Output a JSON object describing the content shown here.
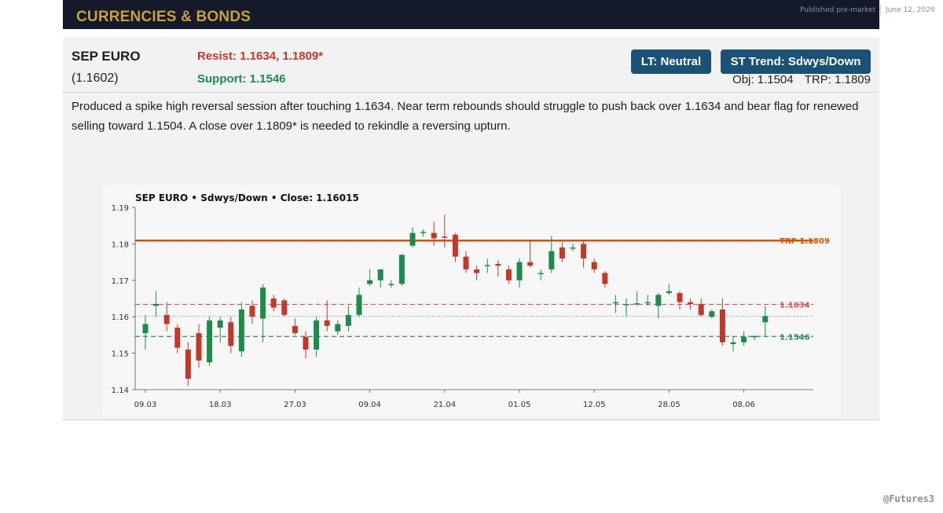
{
  "header": {
    "section_title": "CURRENCIES & BONDS",
    "published_label": "Published pre-market",
    "date": "June 12, 2026"
  },
  "card": {
    "instrument": "SEP EURO",
    "last_price": "(1.1602)",
    "resist": "Resist: 1.1634, 1.1809*",
    "support": "Support: 1.1546",
    "lt_badge": "LT: Neutral",
    "st_badge": "ST Trend: Sdwys/Down",
    "objective": "Obj: 1.1504",
    "trp": "TRP: 1.1809",
    "commentary": "Produced a spike high reversal session after touching 1.1634. Near term rebounds should struggle to push back over 1.1634 and bear flag for renewed selling toward 1.1504. A close over 1.1809* is needed to rekindle a reversing upturn."
  },
  "credit": "@Futures3",
  "colors": {
    "up": "#1e8a4c",
    "down": "#c0392b",
    "trp_line": "#d35400",
    "resist_line": "#d9534f",
    "support_line": "#2e8b57",
    "badge": "#1b5177",
    "title_gold": "#c9a13a"
  },
  "chart_data": {
    "type": "candlestick",
    "title": "SEP EURO  •  Sdwys/Down  •  Close: 1.16015",
    "ylim": [
      1.14,
      1.19
    ],
    "yticks": [
      "1.14",
      "1.15",
      "1.16",
      "1.17",
      "1.18",
      "1.19"
    ],
    "xticks": [
      {
        "index": 0,
        "label": "09.03"
      },
      {
        "index": 7,
        "label": "18.03"
      },
      {
        "index": 14,
        "label": "27.03"
      },
      {
        "index": 21,
        "label": "09.04"
      },
      {
        "index": 28,
        "label": "21.04"
      },
      {
        "index": 35,
        "label": "01.05"
      },
      {
        "index": 42,
        "label": "12.05"
      },
      {
        "index": 49,
        "label": "28.05"
      },
      {
        "index": 56,
        "label": "08.06"
      }
    ],
    "levels": [
      {
        "label": "TRP 1.1809",
        "value": 1.1809,
        "style": "solid",
        "color": "#d35400"
      },
      {
        "label": "1.1634",
        "value": 1.1634,
        "style": "dashed",
        "color": "#d9534f"
      },
      {
        "label": "1.1546",
        "value": 1.1546,
        "style": "dashed",
        "color": "#2e8b57"
      },
      {
        "label": "",
        "value": 1.16015,
        "style": "dotted",
        "color": "#777777"
      }
    ],
    "candles": [
      {
        "o": 1.1555,
        "h": 1.1605,
        "l": 1.151,
        "c": 1.158
      },
      {
        "o": 1.163,
        "h": 1.167,
        "l": 1.16,
        "c": 1.1635
      },
      {
        "o": 1.1605,
        "h": 1.164,
        "l": 1.156,
        "c": 1.158
      },
      {
        "o": 1.157,
        "h": 1.158,
        "l": 1.15,
        "c": 1.1515
      },
      {
        "o": 1.151,
        "h": 1.153,
        "l": 1.141,
        "c": 1.143
      },
      {
        "o": 1.1555,
        "h": 1.158,
        "l": 1.146,
        "c": 1.148
      },
      {
        "o": 1.1475,
        "h": 1.16,
        "l": 1.1465,
        "c": 1.159
      },
      {
        "o": 1.157,
        "h": 1.16,
        "l": 1.153,
        "c": 1.159
      },
      {
        "o": 1.1585,
        "h": 1.16,
        "l": 1.15,
        "c": 1.152
      },
      {
        "o": 1.1505,
        "h": 1.164,
        "l": 1.149,
        "c": 1.162
      },
      {
        "o": 1.163,
        "h": 1.1645,
        "l": 1.158,
        "c": 1.16
      },
      {
        "o": 1.1595,
        "h": 1.169,
        "l": 1.153,
        "c": 1.168
      },
      {
        "o": 1.165,
        "h": 1.166,
        "l": 1.1615,
        "c": 1.1625
      },
      {
        "o": 1.1645,
        "h": 1.165,
        "l": 1.16,
        "c": 1.1605
      },
      {
        "o": 1.1575,
        "h": 1.1595,
        "l": 1.155,
        "c": 1.1555
      },
      {
        "o": 1.1545,
        "h": 1.156,
        "l": 1.1485,
        "c": 1.151
      },
      {
        "o": 1.151,
        "h": 1.16,
        "l": 1.149,
        "c": 1.159
      },
      {
        "o": 1.159,
        "h": 1.1645,
        "l": 1.156,
        "c": 1.1575
      },
      {
        "o": 1.156,
        "h": 1.159,
        "l": 1.155,
        "c": 1.158
      },
      {
        "o": 1.1575,
        "h": 1.163,
        "l": 1.156,
        "c": 1.1605
      },
      {
        "o": 1.1605,
        "h": 1.168,
        "l": 1.16,
        "c": 1.166
      },
      {
        "o": 1.169,
        "h": 1.173,
        "l": 1.1685,
        "c": 1.17
      },
      {
        "o": 1.17,
        "h": 1.1725,
        "l": 1.168,
        "c": 1.173
      },
      {
        "o": 1.169,
        "h": 1.17,
        "l": 1.168,
        "c": 1.169
      },
      {
        "o": 1.169,
        "h": 1.177,
        "l": 1.1685,
        "c": 1.177
      },
      {
        "o": 1.1795,
        "h": 1.1845,
        "l": 1.179,
        "c": 1.183
      },
      {
        "o": 1.183,
        "h": 1.184,
        "l": 1.182,
        "c": 1.1833
      },
      {
        "o": 1.183,
        "h": 1.186,
        "l": 1.1795,
        "c": 1.1815
      },
      {
        "o": 1.182,
        "h": 1.188,
        "l": 1.179,
        "c": 1.1819
      },
      {
        "o": 1.1825,
        "h": 1.183,
        "l": 1.175,
        "c": 1.1765
      },
      {
        "o": 1.1765,
        "h": 1.178,
        "l": 1.172,
        "c": 1.173
      },
      {
        "o": 1.173,
        "h": 1.174,
        "l": 1.17,
        "c": 1.172
      },
      {
        "o": 1.174,
        "h": 1.176,
        "l": 1.172,
        "c": 1.1742
      },
      {
        "o": 1.1745,
        "h": 1.1755,
        "l": 1.171,
        "c": 1.174
      },
      {
        "o": 1.173,
        "h": 1.174,
        "l": 1.169,
        "c": 1.17
      },
      {
        "o": 1.17,
        "h": 1.176,
        "l": 1.168,
        "c": 1.175
      },
      {
        "o": 1.175,
        "h": 1.181,
        "l": 1.1735,
        "c": 1.174
      },
      {
        "o": 1.172,
        "h": 1.173,
        "l": 1.17,
        "c": 1.172
      },
      {
        "o": 1.173,
        "h": 1.1822,
        "l": 1.172,
        "c": 1.178
      },
      {
        "o": 1.179,
        "h": 1.1805,
        "l": 1.175,
        "c": 1.176
      },
      {
        "o": 1.179,
        "h": 1.18,
        "l": 1.178,
        "c": 1.179
      },
      {
        "o": 1.18,
        "h": 1.181,
        "l": 1.1735,
        "c": 1.176
      },
      {
        "o": 1.175,
        "h": 1.176,
        "l": 1.172,
        "c": 1.173
      },
      {
        "o": 1.172,
        "h": 1.1725,
        "l": 1.168,
        "c": 1.169
      },
      {
        "o": 1.164,
        "h": 1.166,
        "l": 1.161,
        "c": 1.164
      },
      {
        "o": 1.1635,
        "h": 1.165,
        "l": 1.16,
        "c": 1.1635
      },
      {
        "o": 1.1637,
        "h": 1.167,
        "l": 1.163,
        "c": 1.1637
      },
      {
        "o": 1.164,
        "h": 1.166,
        "l": 1.163,
        "c": 1.164
      },
      {
        "o": 1.163,
        "h": 1.1665,
        "l": 1.1595,
        "c": 1.166
      },
      {
        "o": 1.1665,
        "h": 1.169,
        "l": 1.166,
        "c": 1.167
      },
      {
        "o": 1.1665,
        "h": 1.167,
        "l": 1.162,
        "c": 1.164
      },
      {
        "o": 1.164,
        "h": 1.165,
        "l": 1.162,
        "c": 1.1635
      },
      {
        "o": 1.1635,
        "h": 1.165,
        "l": 1.16,
        "c": 1.1605
      },
      {
        "o": 1.16,
        "h": 1.162,
        "l": 1.1595,
        "c": 1.1615
      },
      {
        "o": 1.162,
        "h": 1.165,
        "l": 1.152,
        "c": 1.153
      },
      {
        "o": 1.1525,
        "h": 1.1545,
        "l": 1.1505,
        "c": 1.153
      },
      {
        "o": 1.153,
        "h": 1.156,
        "l": 1.152,
        "c": 1.1545
      },
      {
        "o": 1.1545,
        "h": 1.155,
        "l": 1.1535,
        "c": 1.1547
      },
      {
        "o": 1.1585,
        "h": 1.163,
        "l": 1.1545,
        "c": 1.1602
      }
    ]
  }
}
